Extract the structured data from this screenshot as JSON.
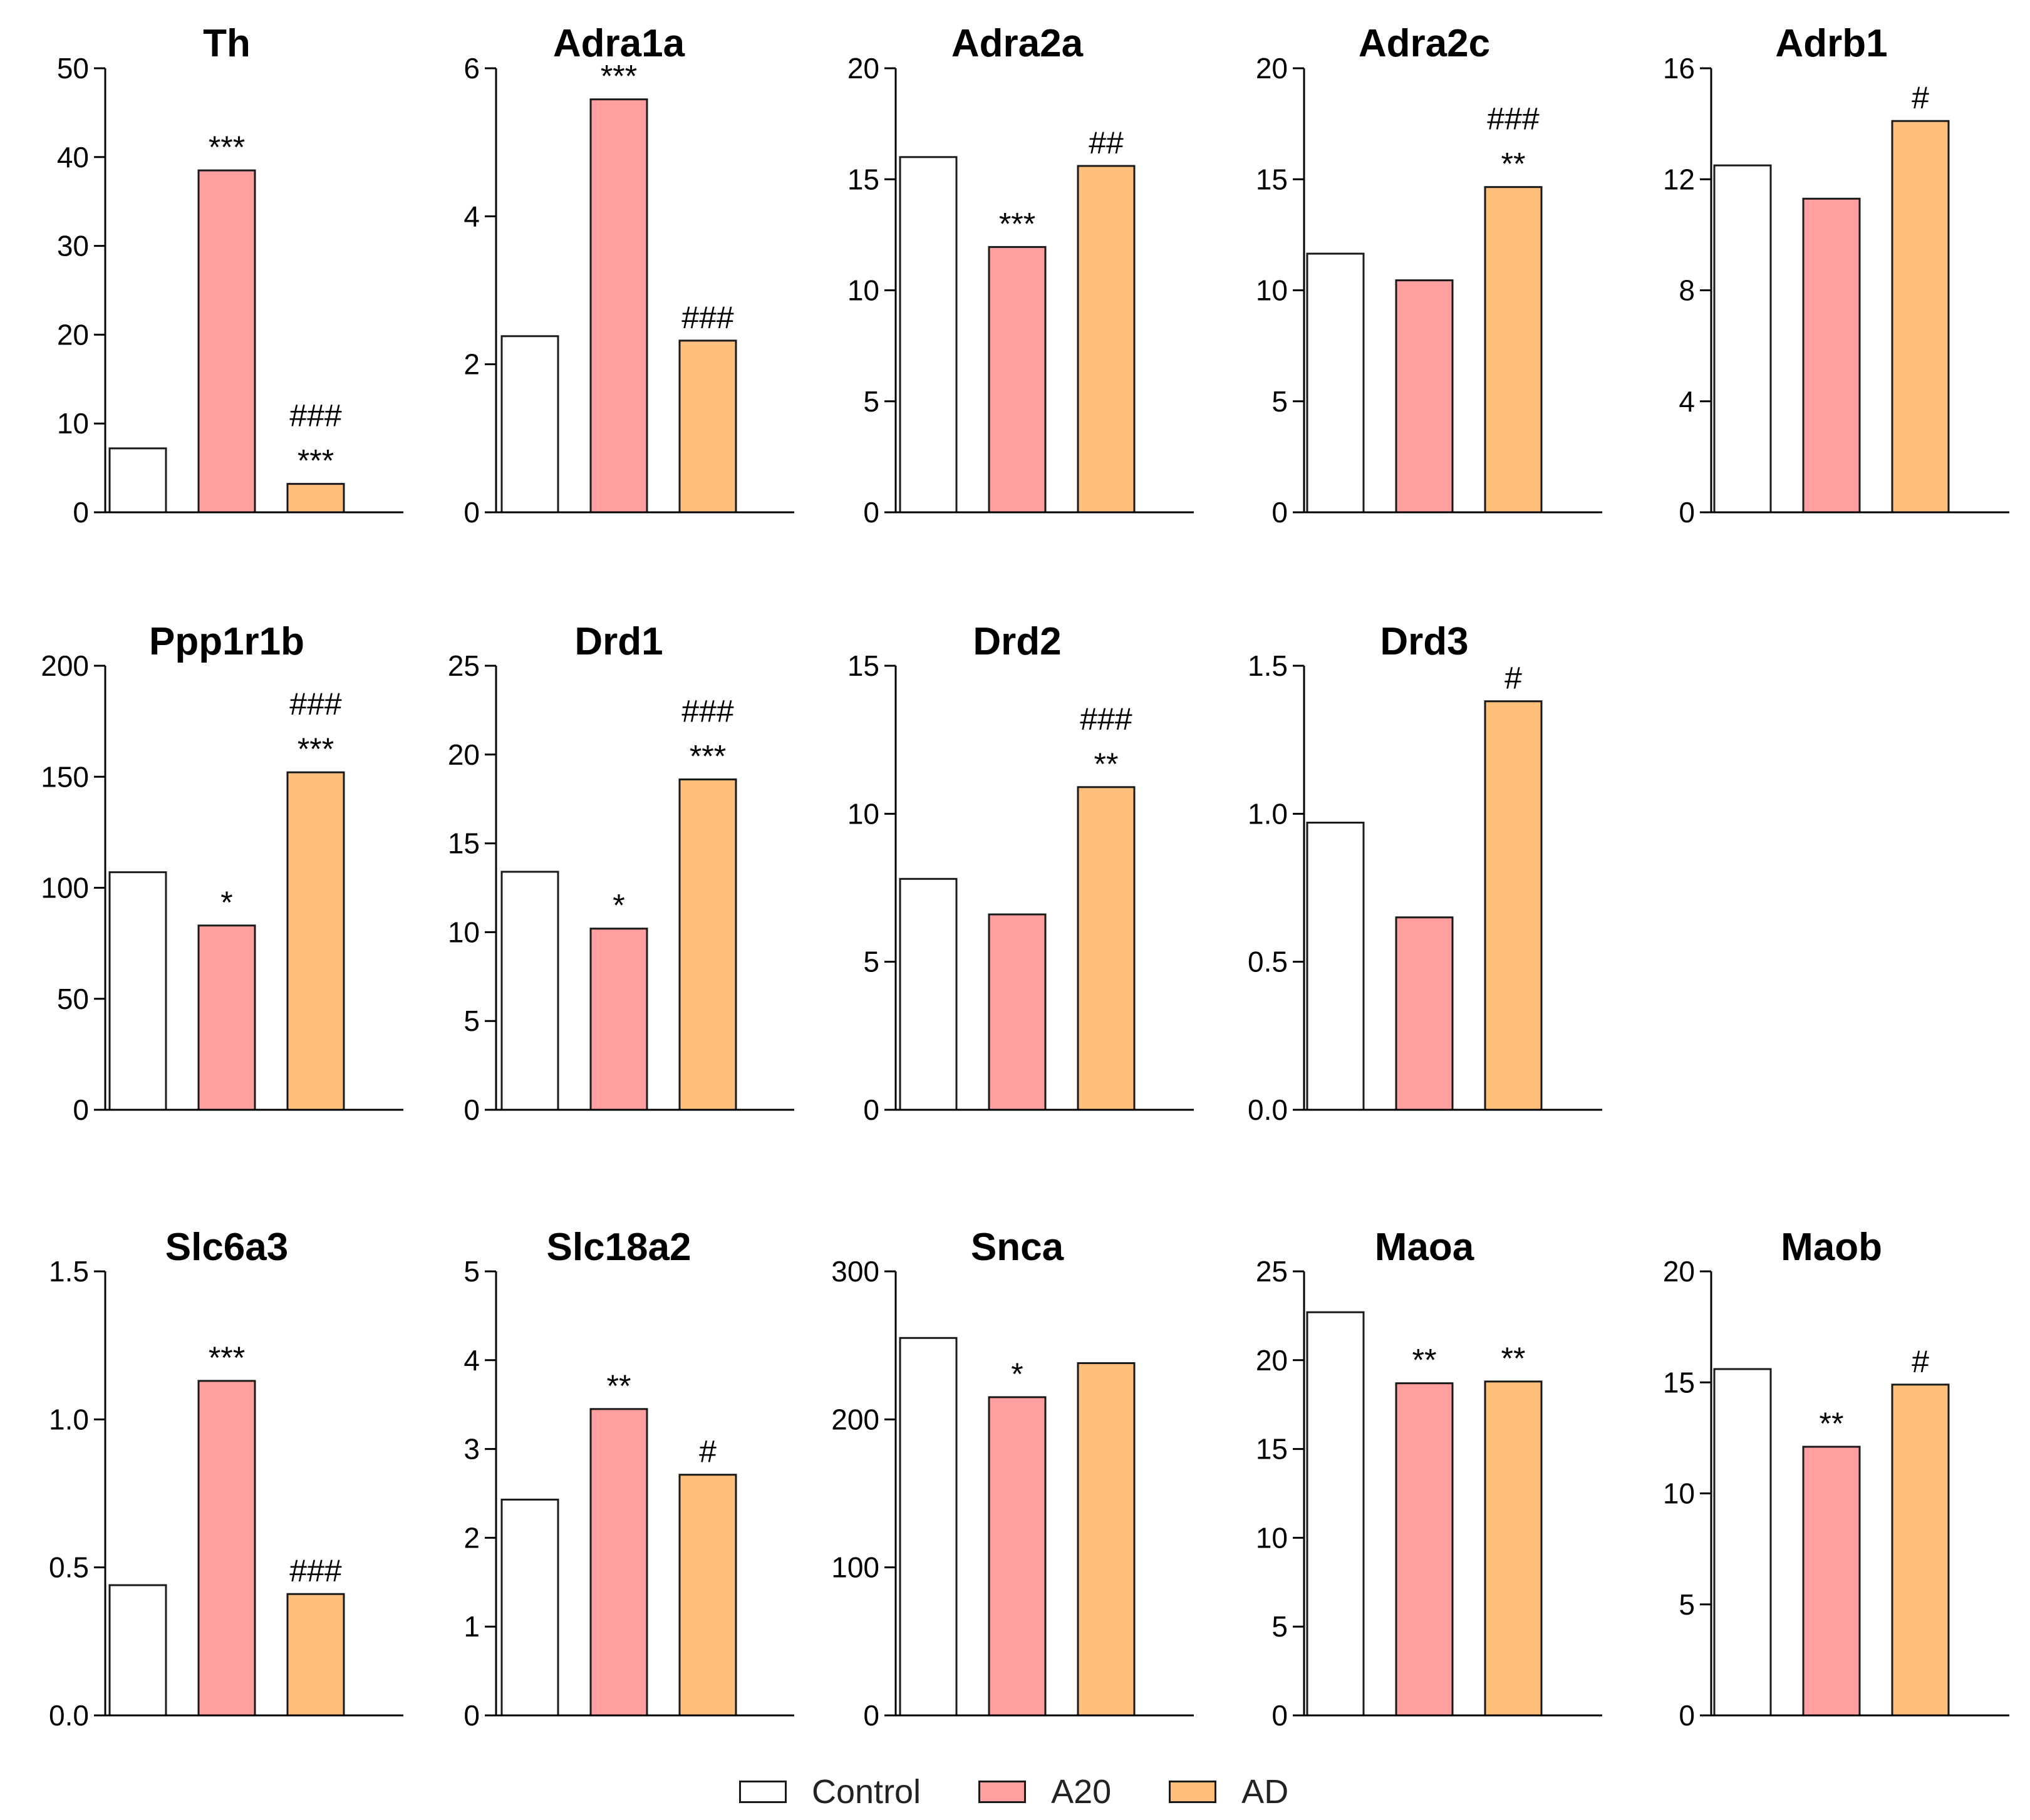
{
  "legend": {
    "entries": [
      {
        "label": "Control",
        "color": "#ffffff"
      },
      {
        "label": "A20",
        "color": "#ff9f9f"
      },
      {
        "label": "AD",
        "color": "#ffbf7d"
      }
    ]
  },
  "chart_data": [
    {
      "type": "bar",
      "title": "Th",
      "categories": [
        "Control",
        "A20",
        "AD"
      ],
      "values": [
        7.2,
        38.5,
        3.2
      ],
      "ylim": [
        0,
        50
      ],
      "yticks": [
        "0",
        "10",
        "20",
        "30",
        "40",
        "50"
      ],
      "annotations": [
        [],
        [
          "***"
        ],
        [
          "###",
          "***"
        ]
      ]
    },
    {
      "type": "bar",
      "title": "Adra1a",
      "categories": [
        "Control",
        "A20",
        "AD"
      ],
      "values": [
        2.38,
        5.58,
        2.32
      ],
      "ylim": [
        0,
        6
      ],
      "yticks": [
        "0",
        "2",
        "4",
        "6"
      ],
      "annotations": [
        [],
        [
          "***"
        ],
        [
          "###"
        ]
      ]
    },
    {
      "type": "bar",
      "title": "Adra2a",
      "categories": [
        "Control",
        "A20",
        "AD"
      ],
      "values": [
        16.0,
        11.95,
        15.6
      ],
      "ylim": [
        0,
        20
      ],
      "yticks": [
        "0",
        "5",
        "10",
        "15",
        "20"
      ],
      "annotations": [
        [],
        [
          "***"
        ],
        [
          "##"
        ]
      ]
    },
    {
      "type": "bar",
      "title": "Adra2c",
      "categories": [
        "Control",
        "A20",
        "AD"
      ],
      "values": [
        11.65,
        10.45,
        14.65
      ],
      "ylim": [
        0,
        20
      ],
      "yticks": [
        "0",
        "5",
        "10",
        "15",
        "20"
      ],
      "annotations": [
        [],
        [],
        [
          "###",
          "**"
        ]
      ]
    },
    {
      "type": "bar",
      "title": "Adrb1",
      "categories": [
        "Control",
        "A20",
        "AD"
      ],
      "values": [
        12.5,
        11.3,
        14.1
      ],
      "ylim": [
        0,
        16
      ],
      "yticks": [
        "0",
        "4",
        "8",
        "12",
        "16"
      ],
      "annotations": [
        [],
        [],
        [
          "#"
        ]
      ]
    },
    {
      "type": "bar",
      "title": "Ppp1r1b",
      "categories": [
        "Control",
        "A20",
        "AD"
      ],
      "values": [
        107,
        83,
        152
      ],
      "ylim": [
        0,
        200
      ],
      "yticks": [
        "0",
        "50",
        "100",
        "150",
        "200"
      ],
      "annotations": [
        [],
        [
          "*"
        ],
        [
          "###",
          "***"
        ]
      ]
    },
    {
      "type": "bar",
      "title": "Drd1",
      "categories": [
        "Control",
        "A20",
        "AD"
      ],
      "values": [
        13.4,
        10.2,
        18.6
      ],
      "ylim": [
        0,
        25
      ],
      "yticks": [
        "0",
        "5",
        "10",
        "15",
        "20",
        "25"
      ],
      "annotations": [
        [],
        [
          "*"
        ],
        [
          "###",
          "***"
        ]
      ]
    },
    {
      "type": "bar",
      "title": "Drd2",
      "categories": [
        "Control",
        "A20",
        "AD"
      ],
      "values": [
        7.8,
        6.6,
        10.9
      ],
      "ylim": [
        0,
        15
      ],
      "yticks": [
        "0",
        "5",
        "10",
        "15"
      ],
      "annotations": [
        [],
        [],
        [
          "###",
          "**"
        ]
      ]
    },
    {
      "type": "bar",
      "title": "Drd3",
      "categories": [
        "Control",
        "A20",
        "AD"
      ],
      "values": [
        0.97,
        0.65,
        1.38
      ],
      "ylim": [
        0,
        1.5
      ],
      "yticks": [
        "0.0",
        "0.5",
        "1.0",
        "1.5"
      ],
      "annotations": [
        [],
        [],
        [
          "#"
        ]
      ]
    },
    {
      "type": "bar",
      "title": "Slc6a3",
      "categories": [
        "Control",
        "A20",
        "AD"
      ],
      "values": [
        0.44,
        1.13,
        0.41
      ],
      "ylim": [
        0,
        1.5
      ],
      "yticks": [
        "0.0",
        "0.5",
        "1.0",
        "1.5"
      ],
      "annotations": [
        [],
        [
          "***"
        ],
        [
          "###"
        ]
      ]
    },
    {
      "type": "bar",
      "title": "Slc18a2",
      "categories": [
        "Control",
        "A20",
        "AD"
      ],
      "values": [
        2.43,
        3.45,
        2.71
      ],
      "ylim": [
        0,
        5
      ],
      "yticks": [
        "0",
        "1",
        "2",
        "3",
        "4",
        "5"
      ],
      "annotations": [
        [],
        [
          "**"
        ],
        [
          "#"
        ]
      ]
    },
    {
      "type": "bar",
      "title": "Snca",
      "categories": [
        "Control",
        "A20",
        "AD"
      ],
      "values": [
        255,
        215,
        238
      ],
      "ylim": [
        0,
        300
      ],
      "yticks": [
        "0",
        "100",
        "200",
        "300"
      ],
      "annotations": [
        [],
        [
          "*"
        ],
        []
      ]
    },
    {
      "type": "bar",
      "title": "Maoa",
      "categories": [
        "Control",
        "A20",
        "AD"
      ],
      "values": [
        22.7,
        18.7,
        18.8
      ],
      "ylim": [
        0,
        25
      ],
      "yticks": [
        "0",
        "5",
        "10",
        "15",
        "20",
        "25"
      ],
      "annotations": [
        [],
        [
          "**"
        ],
        [
          "**"
        ]
      ]
    },
    {
      "type": "bar",
      "title": "Maob",
      "categories": [
        "Control",
        "A20",
        "AD"
      ],
      "values": [
        15.6,
        12.1,
        14.9
      ],
      "ylim": [
        0,
        20
      ],
      "yticks": [
        "0",
        "5",
        "10",
        "15",
        "20"
      ],
      "annotations": [
        [],
        [
          "**"
        ],
        [
          "#"
        ]
      ]
    }
  ]
}
